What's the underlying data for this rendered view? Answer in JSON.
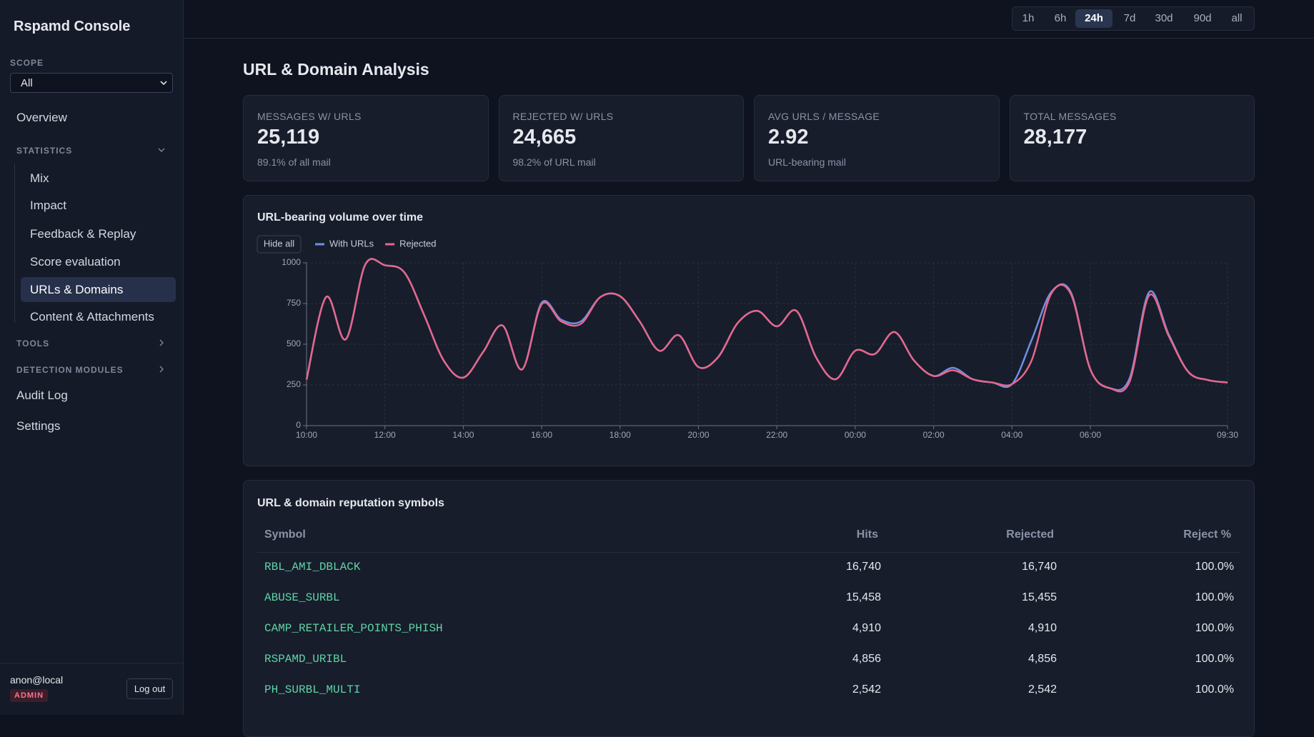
{
  "sidebar": {
    "brand": "Rspamd Console",
    "scope_label": "SCOPE",
    "scope_value": "All",
    "overview": "Overview",
    "statistics": {
      "label": "STATISTICS",
      "items": [
        "Mix",
        "Impact",
        "Feedback & Replay",
        "Score evaluation",
        "URLs & Domains",
        "Content & Attachments"
      ],
      "active": 4
    },
    "tools": "TOOLS",
    "detection_modules": "DETECTION MODULES",
    "audit_log": "Audit Log",
    "settings": "Settings",
    "user": "anon@local",
    "role": "ADMIN",
    "logout": "Log out"
  },
  "time_ranges": {
    "options": [
      "1h",
      "6h",
      "24h",
      "7d",
      "30d",
      "90d",
      "all"
    ],
    "selected": 2
  },
  "page_title": "URL & Domain Analysis",
  "stats": [
    {
      "label": "MESSAGES W/ URLS",
      "value": "25,119",
      "note": "89.1% of all mail"
    },
    {
      "label": "REJECTED W/ URLS",
      "value": "24,665",
      "note": "98.2% of URL mail"
    },
    {
      "label": "AVG URLS / MESSAGE",
      "value": "2.92",
      "note": "URL-bearing mail"
    },
    {
      "label": "TOTAL MESSAGES",
      "value": "28,177"
    }
  ],
  "chart_controls": {
    "hide_all": "Hide all"
  },
  "chart_data": {
    "type": "line",
    "title": "URL-bearing volume over time",
    "categories": [
      "10:00",
      null,
      null,
      null,
      "12:00",
      null,
      null,
      null,
      "14:00",
      null,
      null,
      null,
      "16:00",
      null,
      null,
      null,
      "18:00",
      null,
      null,
      null,
      "20:00",
      null,
      null,
      null,
      "22:00",
      null,
      null,
      null,
      "00:00",
      null,
      null,
      null,
      "02:00",
      null,
      null,
      null,
      "04:00",
      null,
      null,
      null,
      "06:00",
      null,
      null,
      null,
      null,
      null,
      null,
      "09:30"
    ],
    "series": [
      {
        "name": "With URLs",
        "color": "#6f8fe6",
        "values": [
          283,
          790,
          530,
          990,
          985,
          940,
          680,
          400,
          295,
          450,
          615,
          345,
          755,
          650,
          640,
          790,
          795,
          640,
          460,
          555,
          360,
          420,
          630,
          705,
          610,
          705,
          420,
          285,
          460,
          440,
          575,
          400,
          305,
          355,
          285,
          265,
          255,
          525,
          820,
          820,
          345,
          230,
          290,
          820,
          560,
          330,
          280,
          265
        ]
      },
      {
        "name": "Rejected",
        "color": "#e8668a",
        "values": [
          283,
          790,
          530,
          990,
          985,
          940,
          680,
          400,
          295,
          450,
          615,
          345,
          745,
          640,
          625,
          790,
          795,
          640,
          460,
          555,
          360,
          420,
          630,
          705,
          610,
          705,
          420,
          285,
          460,
          440,
          575,
          400,
          305,
          340,
          285,
          265,
          255,
          400,
          810,
          810,
          345,
          230,
          270,
          800,
          550,
          330,
          280,
          265
        ]
      }
    ],
    "ylim": [
      0,
      1000
    ],
    "yticks": [
      0,
      250,
      500,
      750,
      1000
    ],
    "grid": true
  },
  "table": {
    "title": "URL & domain reputation symbols",
    "columns": [
      "Symbol",
      "Hits",
      "Rejected",
      "Reject %"
    ],
    "rows": [
      [
        "RBL_AMI_DBLACK",
        "16,740",
        "16,740",
        "100.0%"
      ],
      [
        "ABUSE_SURBL",
        "15,458",
        "15,455",
        "100.0%"
      ],
      [
        "CAMP_RETAILER_POINTS_PHISH",
        "4,910",
        "4,910",
        "100.0%"
      ],
      [
        "RSPAMD_URIBL",
        "4,856",
        "4,856",
        "100.0%"
      ],
      [
        "PH_SURBL_MULTI",
        "2,542",
        "2,542",
        "100.0%"
      ]
    ]
  }
}
